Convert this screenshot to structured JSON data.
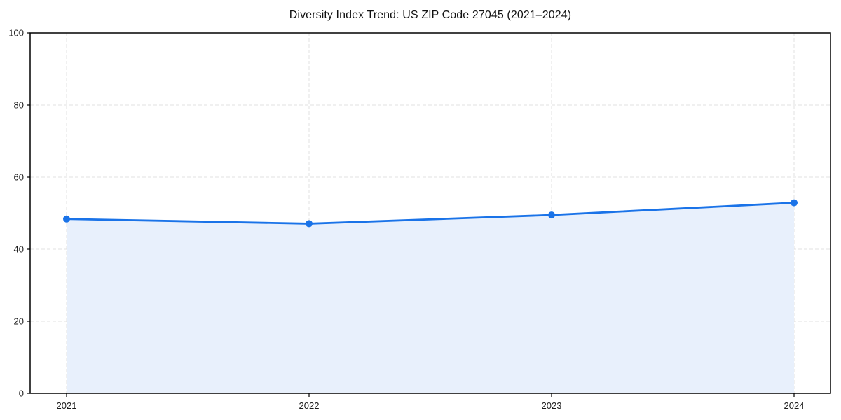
{
  "title": "Diversity Index Trend: US ZIP Code 27045 (2021–2024)",
  "colors": {
    "line": "#1a73e8",
    "marker": "#1a73e8",
    "area_fill": "#e8f0fc",
    "grid": "#e0e0e0",
    "spine": "#000000",
    "tick_label": "#1a1a1a",
    "title": "#111111",
    "background": "#ffffff"
  },
  "chart_data": {
    "type": "area",
    "title": "Diversity Index Trend: US ZIP Code 27045 (2021–2024)",
    "series_name": "Diversity Index",
    "x": [
      "2021",
      "2022",
      "2023",
      "2024"
    ],
    "values": [
      48.4,
      47.1,
      49.5,
      52.9
    ],
    "xlabel": "",
    "ylabel": "",
    "ylim": [
      0,
      100
    ],
    "yticks": [
      0,
      20,
      40,
      60,
      80,
      100
    ],
    "xtick_labels": [
      "2021",
      "2022",
      "2023",
      "2024"
    ],
    "grid": "dashed",
    "legend": "none",
    "line_style": "solid-with-circle-markers",
    "area_fills_to": 0
  }
}
